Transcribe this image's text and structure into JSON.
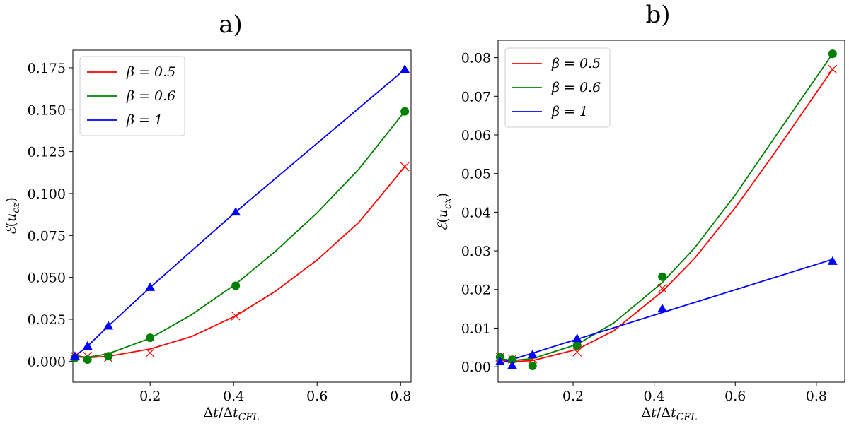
{
  "chart_data": [
    {
      "type": "line",
      "title": "a)",
      "xlabel": "Δt/Δt_CFL",
      "ylabel": "ℰ(u_cz)",
      "xlim": [
        0.015,
        0.825
      ],
      "ylim": [
        -0.0125,
        0.1855
      ],
      "xticks": [
        0.2,
        0.4,
        0.6,
        0.8
      ],
      "xtick_labels": [
        "0.2",
        "0.4",
        "0.6",
        "0.8"
      ],
      "yticks": [
        0.0,
        0.025,
        0.05,
        0.075,
        0.1,
        0.125,
        0.15,
        0.175
      ],
      "ytick_labels": [
        "0.000",
        "0.025",
        "0.050",
        "0.075",
        "0.100",
        "0.125",
        "0.150",
        "0.175"
      ],
      "legend_position": "top-left",
      "series": [
        {
          "name": "β = 0.5",
          "color": "#ff0000",
          "marker": "x",
          "points": [
            [
              0.02,
              0.003
            ],
            [
              0.05,
              0.003
            ],
            [
              0.1,
              0.002
            ],
            [
              0.2,
              0.005
            ],
            [
              0.405,
              0.027
            ],
            [
              0.81,
              0.116
            ]
          ],
          "fit": [
            [
              0.02,
              0.0035
            ],
            [
              0.05,
              0.0021
            ],
            [
              0.1,
              0.0029
            ],
            [
              0.2,
              0.0073
            ],
            [
              0.3,
              0.0148
            ],
            [
              0.405,
              0.027
            ],
            [
              0.5,
              0.0417
            ],
            [
              0.6,
              0.0604
            ],
            [
              0.7,
              0.0828
            ],
            [
              0.81,
              0.116
            ]
          ]
        },
        {
          "name": "β = 0.6",
          "color": "#008000",
          "marker": "o",
          "points": [
            [
              0.02,
              0.002
            ],
            [
              0.05,
              0.001
            ],
            [
              0.1,
              0.003
            ],
            [
              0.2,
              0.014
            ],
            [
              0.405,
              0.045
            ],
            [
              0.81,
              0.149
            ]
          ],
          "fit": [
            [
              0.02,
              0.0026
            ],
            [
              0.05,
              0.0023
            ],
            [
              0.1,
              0.0045
            ],
            [
              0.2,
              0.0137
            ],
            [
              0.3,
              0.0278
            ],
            [
              0.405,
              0.046
            ],
            [
              0.5,
              0.0655
            ],
            [
              0.6,
              0.0885
            ],
            [
              0.7,
              0.1145
            ],
            [
              0.81,
              0.149
            ]
          ]
        },
        {
          "name": "β = 1",
          "color": "#0000ff",
          "marker": "^",
          "points": [
            [
              0.02,
              0.003
            ],
            [
              0.05,
              0.009
            ],
            [
              0.1,
              0.021
            ],
            [
              0.2,
              0.044
            ],
            [
              0.405,
              0.089
            ],
            [
              0.81,
              0.174
            ]
          ],
          "fit": [
            [
              0.02,
              0.003
            ],
            [
              0.05,
              0.009
            ],
            [
              0.1,
              0.021
            ],
            [
              0.2,
              0.044
            ],
            [
              0.405,
              0.089
            ],
            [
              0.81,
              0.174
            ]
          ]
        }
      ]
    },
    {
      "type": "line",
      "title": "b)",
      "xlabel": "Δt/Δt_CFL",
      "ylabel": "ℰ(u_cx)",
      "xlim": [
        0.015,
        0.87
      ],
      "ylim": [
        -0.004,
        0.0845
      ],
      "xticks": [
        0.2,
        0.4,
        0.6,
        0.8
      ],
      "xtick_labels": [
        "0.2",
        "0.4",
        "0.6",
        "0.8"
      ],
      "yticks": [
        0.0,
        0.01,
        0.02,
        0.03,
        0.04,
        0.05,
        0.06,
        0.07,
        0.08
      ],
      "ytick_labels": [
        "0.00",
        "0.01",
        "0.02",
        "0.03",
        "0.04",
        "0.05",
        "0.06",
        "0.07",
        "0.08"
      ],
      "legend_position": "top-left",
      "series": [
        {
          "name": "β = 0.5",
          "color": "#ff0000",
          "marker": "x",
          "points": [
            [
              0.02,
              0.0025
            ],
            [
              0.05,
              0.002
            ],
            [
              0.1,
              0.002
            ],
            [
              0.21,
              0.0038
            ],
            [
              0.42,
              0.0203
            ],
            [
              0.84,
              0.077
            ]
          ],
          "fit": [
            [
              0.02,
              0.0018
            ],
            [
              0.05,
              0.0013
            ],
            [
              0.1,
              0.0016
            ],
            [
              0.21,
              0.0045
            ],
            [
              0.3,
              0.0093
            ],
            [
              0.42,
              0.0195
            ],
            [
              0.5,
              0.0281
            ],
            [
              0.6,
              0.0412
            ],
            [
              0.7,
              0.0558
            ],
            [
              0.84,
              0.077
            ]
          ]
        },
        {
          "name": "β = 0.6",
          "color": "#008000",
          "marker": "o",
          "points": [
            [
              0.02,
              0.0025
            ],
            [
              0.05,
              0.0018
            ],
            [
              0.1,
              0.0002
            ],
            [
              0.21,
              0.0055
            ],
            [
              0.42,
              0.0233
            ],
            [
              0.84,
              0.081
            ]
          ],
          "fit": [
            [
              0.02,
              0.0021
            ],
            [
              0.05,
              0.0016
            ],
            [
              0.1,
              0.0021
            ],
            [
              0.21,
              0.0058
            ],
            [
              0.3,
              0.0113
            ],
            [
              0.42,
              0.0218
            ],
            [
              0.5,
              0.0308
            ],
            [
              0.6,
              0.0445
            ],
            [
              0.7,
              0.0598
            ],
            [
              0.84,
              0.081
            ]
          ]
        },
        {
          "name": "β = 1",
          "color": "#0000ff",
          "marker": "^",
          "points": [
            [
              0.02,
              0.0013
            ],
            [
              0.05,
              0.0003
            ],
            [
              0.1,
              0.0031
            ],
            [
              0.21,
              0.0073
            ],
            [
              0.42,
              0.015
            ],
            [
              0.84,
              0.0273
            ]
          ],
          "fit": [
            [
              0.02,
              0.0009
            ],
            [
              0.84,
              0.0278
            ]
          ]
        }
      ]
    }
  ]
}
